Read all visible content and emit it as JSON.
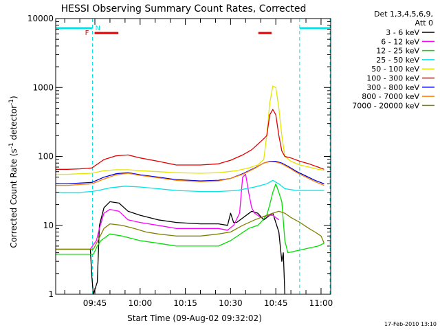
{
  "chart_data": {
    "type": "line",
    "title": "HESSI Observing Summary Count Rates, Corrected",
    "xlabel": "Start Time (09-Aug-02 09:32:02)",
    "ylabel": "Corrected Count Rate (s",
    "ylabel_sup1": "-1",
    "ylabel_mid": " detector",
    "ylabel_sup2": "-1",
    "ylabel_end": ")",
    "y_scale": "log",
    "ylim": [
      1,
      10000
    ],
    "xlim_min": [
      32.0,
      103.5
    ],
    "x_unit": "minutes after 09:00 UT",
    "xticks": [
      {
        "label": "09:45",
        "value": 45
      },
      {
        "label": "10:00",
        "value": 60
      },
      {
        "label": "10:15",
        "value": 75
      },
      {
        "label": "10:30",
        "value": 90
      },
      {
        "label": "10:45",
        "value": 105
      },
      {
        "label": "11:00",
        "value": 120
      }
    ],
    "yticks": [
      {
        "label": "1",
        "value": 1
      },
      {
        "label": "10",
        "value": 10
      },
      {
        "label": "100",
        "value": 100
      },
      {
        "label": "1000",
        "value": 1000
      },
      {
        "label": "10000",
        "value": 10000
      }
    ],
    "legend_header": [
      "Det 1,3,4,5,6,9,",
      "Att 0"
    ],
    "legend_position": "right, outside plot",
    "flags": {
      "N_label": "N",
      "F_label": "F",
      "night_color": "#00e5e5",
      "flare_color": "#e00000",
      "night_intervals": [
        [
          32.0,
          44.2
        ],
        [
          112.9,
          124.8
        ]
      ],
      "flare_intervals": [
        [
          44.9,
          52.8
        ],
        [
          99.2,
          103.6
        ]
      ],
      "boundary_times": [
        32.0,
        44.2,
        112.9,
        124.8
      ]
    },
    "series": [
      {
        "name": "3 - 6 keV",
        "color": "#000000",
        "points": [
          [
            32,
            4.5
          ],
          [
            42,
            4.5
          ],
          [
            43.5,
            4.5
          ],
          [
            44.0,
            1.8
          ],
          [
            44.5,
            1
          ],
          [
            45.8,
            1.5
          ],
          [
            46.5,
            10
          ],
          [
            48,
            18
          ],
          [
            50,
            22
          ],
          [
            53,
            21
          ],
          [
            56,
            16
          ],
          [
            60,
            14
          ],
          [
            66,
            12
          ],
          [
            72,
            11
          ],
          [
            80,
            10.5
          ],
          [
            86,
            10.5
          ],
          [
            89,
            10
          ],
          [
            90,
            15
          ],
          [
            91,
            11
          ],
          [
            92,
            11
          ],
          [
            97,
            16
          ],
          [
            99,
            15
          ],
          [
            101,
            12
          ],
          [
            103,
            14
          ],
          [
            104,
            15
          ],
          [
            106,
            8
          ],
          [
            107,
            3
          ],
          [
            107.5,
            4
          ],
          [
            108,
            1
          ]
        ]
      },
      {
        "name": "6 - 12 keV",
        "color": "#ff00ff",
        "points": [
          [
            32,
            4.5
          ],
          [
            42,
            4.5
          ],
          [
            43.5,
            4.5
          ],
          [
            44.2,
            5
          ],
          [
            45.5,
            6
          ],
          [
            46.5,
            9
          ],
          [
            48,
            15
          ],
          [
            50,
            17
          ],
          [
            53,
            16
          ],
          [
            56,
            12
          ],
          [
            60,
            11
          ],
          [
            66,
            10
          ],
          [
            72,
            9
          ],
          [
            80,
            9
          ],
          [
            86,
            9
          ],
          [
            89,
            8.5
          ],
          [
            91,
            10
          ],
          [
            93,
            15
          ],
          [
            94,
            50
          ],
          [
            95,
            55
          ],
          [
            96,
            30
          ],
          [
            97,
            18
          ],
          [
            98,
            15
          ],
          [
            100,
            13
          ],
          [
            103,
            14
          ],
          [
            104,
            14
          ],
          [
            106,
            12
          ]
        ]
      },
      {
        "name": "12 - 25 keV",
        "color": "#00e000",
        "points": [
          [
            32,
            3.8
          ],
          [
            42,
            3.8
          ],
          [
            43.5,
            3.8
          ],
          [
            44.5,
            3.8
          ],
          [
            45.8,
            5
          ],
          [
            47,
            6
          ],
          [
            50,
            7.5
          ],
          [
            54,
            7
          ],
          [
            60,
            6
          ],
          [
            66,
            5.5
          ],
          [
            72,
            5
          ],
          [
            80,
            5
          ],
          [
            86,
            5
          ],
          [
            90,
            6
          ],
          [
            96,
            9
          ],
          [
            99,
            10
          ],
          [
            100,
            11
          ],
          [
            102,
            14
          ],
          [
            103,
            20
          ],
          [
            104,
            30
          ],
          [
            105,
            40
          ],
          [
            106,
            30
          ],
          [
            107,
            22
          ],
          [
            108,
            6
          ],
          [
            109,
            4
          ],
          [
            119,
            5
          ],
          [
            121,
            5.5
          ]
        ]
      },
      {
        "name": "25 - 50 keV",
        "color": "#00e5e5",
        "points": [
          [
            32,
            30
          ],
          [
            36,
            30
          ],
          [
            40,
            30
          ],
          [
            44,
            31
          ],
          [
            46,
            32
          ],
          [
            50,
            35
          ],
          [
            55,
            37
          ],
          [
            60,
            36
          ],
          [
            66,
            34
          ],
          [
            72,
            32
          ],
          [
            80,
            31
          ],
          [
            86,
            31
          ],
          [
            92,
            32
          ],
          [
            98,
            36
          ],
          [
            102,
            40
          ],
          [
            104,
            45
          ],
          [
            106,
            40
          ],
          [
            108,
            34
          ],
          [
            112,
            32
          ],
          [
            116,
            32
          ],
          [
            121,
            32
          ]
        ]
      },
      {
        "name": "50 - 100 keV",
        "color": "#e5e500",
        "points": [
          [
            32,
            55
          ],
          [
            36,
            55
          ],
          [
            40,
            56
          ],
          [
            44,
            57
          ],
          [
            48,
            62
          ],
          [
            52,
            64
          ],
          [
            56,
            64
          ],
          [
            60,
            62
          ],
          [
            66,
            60
          ],
          [
            72,
            58
          ],
          [
            80,
            57
          ],
          [
            86,
            58
          ],
          [
            92,
            62
          ],
          [
            96,
            68
          ],
          [
            99,
            75
          ],
          [
            101,
            90
          ],
          [
            102,
            200
          ],
          [
            103,
            600
          ],
          [
            104,
            1050
          ],
          [
            105,
            1000
          ],
          [
            106,
            500
          ],
          [
            107,
            200
          ],
          [
            108,
            100
          ],
          [
            110,
            85
          ],
          [
            113,
            75
          ],
          [
            116,
            70
          ],
          [
            119,
            65
          ],
          [
            121,
            63
          ]
        ]
      },
      {
        "name": "100 - 300 keV",
        "color": "#e00000",
        "points": [
          [
            32,
            65
          ],
          [
            36,
            65
          ],
          [
            40,
            66
          ],
          [
            44,
            68
          ],
          [
            48,
            90
          ],
          [
            52,
            102
          ],
          [
            56,
            105
          ],
          [
            60,
            95
          ],
          [
            66,
            85
          ],
          [
            72,
            75
          ],
          [
            80,
            75
          ],
          [
            86,
            78
          ],
          [
            90,
            88
          ],
          [
            94,
            105
          ],
          [
            97,
            125
          ],
          [
            99,
            150
          ],
          [
            101,
            180
          ],
          [
            102,
            200
          ],
          [
            103,
            400
          ],
          [
            104,
            480
          ],
          [
            105,
            400
          ],
          [
            106,
            200
          ],
          [
            107,
            120
          ],
          [
            108,
            100
          ],
          [
            110,
            95
          ],
          [
            113,
            85
          ],
          [
            116,
            78
          ],
          [
            119,
            70
          ],
          [
            121,
            65
          ]
        ]
      },
      {
        "name": "300 - 800 keV",
        "color": "#0000e0",
        "points": [
          [
            32,
            40
          ],
          [
            36,
            40
          ],
          [
            40,
            41
          ],
          [
            44,
            42
          ],
          [
            48,
            50
          ],
          [
            52,
            56
          ],
          [
            56,
            58
          ],
          [
            60,
            54
          ],
          [
            66,
            50
          ],
          [
            72,
            46
          ],
          [
            80,
            44
          ],
          [
            86,
            45
          ],
          [
            90,
            48
          ],
          [
            94,
            56
          ],
          [
            98,
            68
          ],
          [
            101,
            80
          ],
          [
            103,
            85
          ],
          [
            105,
            85
          ],
          [
            107,
            80
          ],
          [
            109,
            72
          ],
          [
            112,
            60
          ],
          [
            115,
            52
          ],
          [
            118,
            45
          ],
          [
            121,
            40
          ]
        ]
      },
      {
        "name": "800 - 7000 keV",
        "color": "#ff8000",
        "points": [
          [
            32,
            38
          ],
          [
            36,
            38
          ],
          [
            40,
            39
          ],
          [
            44,
            40
          ],
          [
            48,
            47
          ],
          [
            52,
            54
          ],
          [
            56,
            57
          ],
          [
            60,
            53
          ],
          [
            66,
            49
          ],
          [
            72,
            45
          ],
          [
            80,
            43
          ],
          [
            86,
            44
          ],
          [
            90,
            48
          ],
          [
            94,
            55
          ],
          [
            98,
            67
          ],
          [
            101,
            80
          ],
          [
            103,
            84
          ],
          [
            105,
            83
          ],
          [
            107,
            78
          ],
          [
            109,
            70
          ],
          [
            112,
            58
          ],
          [
            115,
            50
          ],
          [
            118,
            43
          ],
          [
            121,
            38
          ]
        ]
      },
      {
        "name": "7000 - 20000 keV",
        "color": "#808000",
        "points": [
          [
            32,
            4.5
          ],
          [
            42,
            4.5
          ],
          [
            43.5,
            4.5
          ],
          [
            44.5,
            4.5
          ],
          [
            46,
            6
          ],
          [
            48,
            9
          ],
          [
            50,
            10.5
          ],
          [
            54,
            10
          ],
          [
            58,
            9
          ],
          [
            62,
            8
          ],
          [
            66,
            7.5
          ],
          [
            72,
            7
          ],
          [
            80,
            7
          ],
          [
            86,
            7.5
          ],
          [
            90,
            8
          ],
          [
            94,
            10
          ],
          [
            98,
            12
          ],
          [
            102,
            14
          ],
          [
            104,
            15
          ],
          [
            106,
            16
          ],
          [
            108,
            15
          ],
          [
            110,
            13
          ],
          [
            113,
            11
          ],
          [
            116,
            9
          ],
          [
            118,
            8
          ],
          [
            120,
            7
          ],
          [
            121,
            5.5
          ]
        ]
      }
    ]
  },
  "timestamp": "17-Feb-2010 13:10"
}
